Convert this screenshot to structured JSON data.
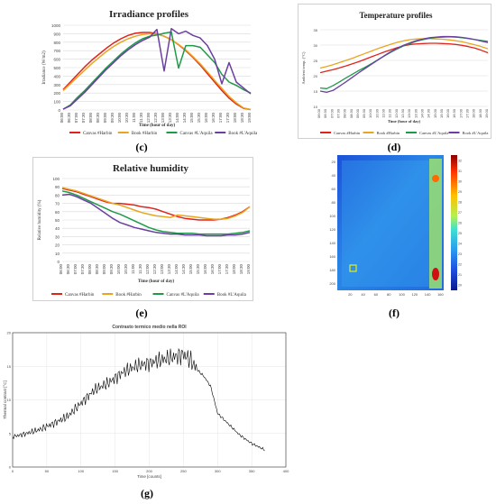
{
  "captions": {
    "c": "(c)",
    "d": "(d)",
    "e": "(e)",
    "f": "(f)",
    "g": "(g)"
  },
  "time_labels": [
    "06:00",
    "06:30",
    "07:00",
    "07:30",
    "08:00",
    "08:30",
    "09:00",
    "09:30",
    "10:00",
    "10:30",
    "11:00",
    "11:30",
    "12:00",
    "12:30",
    "13:00",
    "13:30",
    "14:00",
    "14:30",
    "15:00",
    "15:30",
    "16:00",
    "16:30",
    "17:00",
    "17:30",
    "18:00",
    "18:30",
    "19:00"
  ],
  "colors": {
    "canvas_harbin": "#e0231b",
    "book_harbin": "#e8a620",
    "canvas_laquila": "#1f9a48",
    "book_laquila": "#6b3fa0"
  },
  "chart_data": [
    {
      "id": "c",
      "type": "line",
      "title": "Irradiance profiles",
      "xlabel": "Time (hour of day)",
      "ylabel": "Irradiance (W/m2)",
      "ylim": [
        0,
        1000
      ],
      "yticks": [
        0,
        100,
        200,
        300,
        400,
        500,
        600,
        700,
        800,
        900,
        1000
      ],
      "grid": true,
      "legend": "bottom",
      "series": [
        {
          "name": "Canvas #Harbin",
          "color": "#e0231b",
          "values": [
            240,
            330,
            420,
            510,
            590,
            660,
            730,
            790,
            840,
            880,
            905,
            915,
            915,
            900,
            870,
            830,
            770,
            700,
            620,
            530,
            430,
            330,
            230,
            140,
            70,
            20,
            5
          ]
        },
        {
          "name": "Book #Harbin",
          "color": "#e8a620",
          "values": [
            230,
            310,
            390,
            470,
            550,
            620,
            690,
            750,
            800,
            840,
            870,
            890,
            900,
            895,
            870,
            830,
            775,
            710,
            630,
            545,
            450,
            350,
            255,
            160,
            85,
            25,
            5
          ]
        },
        {
          "name": "Canvas #L'Aquila",
          "color": "#1f9a48",
          "values": [
            10,
            60,
            150,
            230,
            320,
            410,
            500,
            580,
            660,
            730,
            790,
            840,
            870,
            885,
            905,
            920,
            495,
            760,
            760,
            740,
            650,
            560,
            420,
            330,
            290,
            240,
            200
          ]
        },
        {
          "name": "Book #L'Aquila",
          "color": "#6b3fa0",
          "values": [
            10,
            50,
            130,
            210,
            300,
            390,
            480,
            560,
            640,
            710,
            770,
            820,
            860,
            950,
            460,
            960,
            900,
            930,
            880,
            850,
            760,
            600,
            310,
            560,
            330,
            260,
            190
          ]
        }
      ]
    },
    {
      "id": "d",
      "type": "line",
      "title": "Temperature profiles",
      "xlabel": "Time (hour of day)",
      "ylabel": "Ambient temp. (°C)",
      "ylim": [
        10,
        35
      ],
      "yticks": [
        10,
        15,
        20,
        25,
        30,
        35
      ],
      "grid": true,
      "legend": "bottom",
      "series": [
        {
          "name": "Canvas #Harbin",
          "color": "#e0231b",
          "values": [
            21,
            21.5,
            22,
            22.6,
            23.2,
            23.9,
            24.6,
            25.4,
            26.2,
            27,
            27.8,
            28.5,
            29.2,
            29.8,
            30.2,
            30.4,
            30.5,
            30.6,
            30.6,
            30.5,
            30.4,
            30.2,
            29.9,
            29.5,
            29,
            28.3,
            27.5
          ]
        },
        {
          "name": "Book #Harbin",
          "color": "#e8a620",
          "values": [
            22.5,
            23,
            23.6,
            24.3,
            25,
            25.7,
            26.5,
            27.3,
            28.1,
            28.9,
            29.6,
            30.3,
            30.9,
            31.4,
            31.8,
            32,
            32.1,
            32.1,
            32,
            31.9,
            31.7,
            31.4,
            31.1,
            30.6,
            30.1,
            29.5,
            28.8
          ]
        },
        {
          "name": "Canvas #L'Aquila",
          "color": "#1f9a48",
          "values": [
            16,
            15.8,
            16.8,
            18,
            19.3,
            20.5,
            21.7,
            22.8,
            24,
            25.3,
            26.5,
            27.7,
            28.8,
            29.8,
            30.6,
            31.3,
            31.8,
            32.2,
            32.5,
            32.6,
            32.7,
            32.6,
            32.4,
            32.1,
            31.8,
            31.5,
            31.2
          ]
        },
        {
          "name": "Book #L'Aquila",
          "color": "#6b3fa0",
          "values": [
            15,
            14.6,
            15.2,
            16.6,
            18,
            19.5,
            21,
            22.4,
            23.8,
            25.2,
            26.6,
            27.9,
            29,
            30,
            30.8,
            31.5,
            32,
            32.4,
            32.6,
            32.8,
            32.8,
            32.7,
            32.5,
            32.2,
            31.8,
            31.3,
            30.8
          ]
        }
      ]
    },
    {
      "id": "e",
      "type": "line",
      "title": "Relative humidity",
      "xlabel": "Time (hour of day)",
      "ylabel": "Relative humidity (%)",
      "ylim": [
        0,
        100
      ],
      "yticks": [
        0,
        10,
        20,
        30,
        40,
        50,
        60,
        70,
        80,
        90,
        100
      ],
      "grid": true,
      "legend": "bottom",
      "series": [
        {
          "name": "Canvas #Harbin",
          "color": "#e0231b",
          "values": [
            88,
            86,
            84,
            81,
            78,
            75,
            72,
            70,
            70,
            69,
            68,
            66,
            65,
            63,
            60,
            57,
            54,
            52,
            51,
            50,
            50,
            50,
            51,
            53,
            56,
            60,
            66
          ]
        },
        {
          "name": "Book #Harbin",
          "color": "#e8a620",
          "values": [
            89,
            87,
            85,
            82,
            79,
            76,
            73,
            70,
            68,
            65,
            62,
            59,
            57,
            55,
            54,
            53,
            56,
            55,
            54,
            53,
            52,
            51,
            51,
            52,
            55,
            59,
            66
          ]
        },
        {
          "name": "Canvas #L'Aquila",
          "color": "#1f9a48",
          "values": [
            85,
            83,
            80,
            76,
            72,
            68,
            64,
            60,
            57,
            53,
            49,
            45,
            41,
            38,
            36,
            35,
            34,
            34,
            34,
            33,
            33,
            33,
            33,
            33,
            34,
            35,
            37
          ]
        },
        {
          "name": "Book #L'Aquila",
          "color": "#6b3fa0",
          "values": [
            80,
            81,
            78,
            74,
            70,
            64,
            58,
            52,
            47,
            44,
            41,
            39,
            37,
            35,
            34,
            33,
            33,
            32,
            32,
            32,
            31,
            31,
            31,
            32,
            32,
            33,
            35
          ]
        }
      ]
    },
    {
      "id": "f",
      "type": "heatmap",
      "title": "",
      "yticks": [
        20,
        40,
        60,
        80,
        100,
        120,
        140,
        160,
        180,
        200
      ],
      "xticks": [
        20,
        40,
        60,
        80,
        100,
        120,
        140,
        160
      ],
      "colorbar_ticks": [
        32,
        31,
        30,
        29,
        28,
        27,
        26,
        25,
        24,
        23,
        22,
        21,
        20
      ]
    },
    {
      "id": "g",
      "type": "line",
      "title": "Contrasto termico medio nella ROI",
      "xlabel": "Time [counts]",
      "ylabel": "Thermal contrast [°C]",
      "xlim": [
        0,
        400
      ],
      "ylim": [
        0,
        20
      ],
      "xticks": [
        0,
        50,
        100,
        150,
        200,
        250,
        300,
        350,
        400
      ],
      "yticks": [
        0,
        5,
        10,
        15,
        20
      ],
      "grid": true,
      "series": [
        {
          "color": "#000000",
          "x": [
            0,
            20,
            40,
            60,
            80,
            100,
            120,
            140,
            160,
            180,
            200,
            220,
            240,
            250,
            260,
            270,
            280,
            290,
            300,
            310,
            320,
            330,
            340,
            350,
            360,
            370
          ],
          "values": [
            4.5,
            5,
            5.6,
            6.5,
            7.5,
            9.5,
            11.5,
            12.5,
            14,
            15,
            15.5,
            16,
            16.5,
            16.8,
            16,
            14.5,
            13.5,
            12,
            8,
            7,
            6,
            5,
            4.2,
            3.5,
            3,
            2.5
          ]
        }
      ]
    }
  ]
}
